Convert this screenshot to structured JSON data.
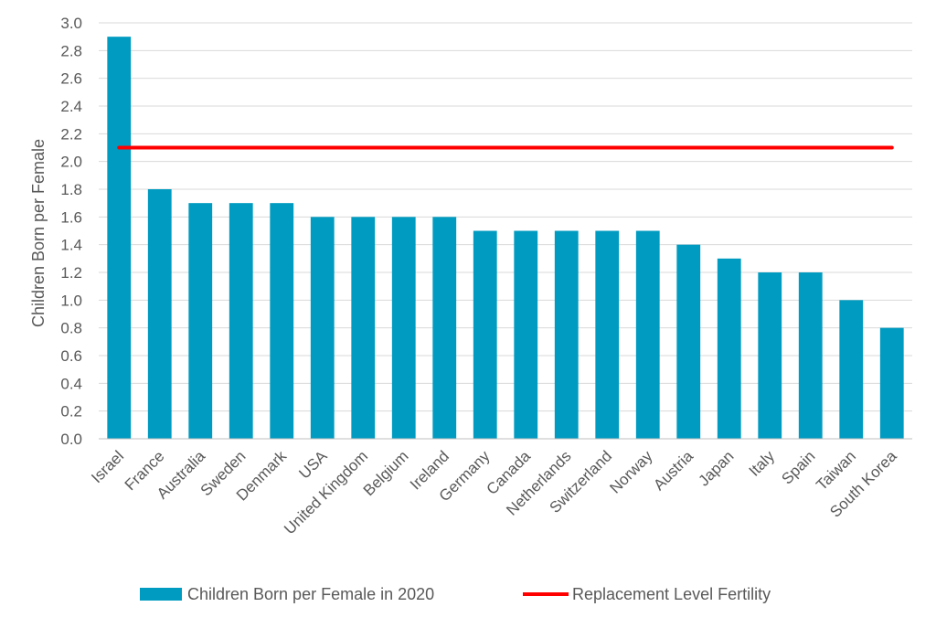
{
  "chart_data": {
    "type": "bar",
    "title": "",
    "xlabel": "",
    "ylabel": "Children Born per Female",
    "ylim": [
      0,
      3.0
    ],
    "ytick_step": 0.2,
    "yticks": [
      "0.0",
      "0.2",
      "0.4",
      "0.6",
      "0.8",
      "1.0",
      "1.2",
      "1.4",
      "1.6",
      "1.8",
      "2.0",
      "2.2",
      "2.4",
      "2.6",
      "2.8",
      "3.0"
    ],
    "grid": true,
    "legend_position": "bottom",
    "categories": [
      "Israel",
      "France",
      "Australia",
      "Sweden",
      "Denmark",
      "USA",
      "United Kingdom",
      "Belgium",
      "Ireland",
      "Germany",
      "Canada",
      "Netherlands",
      "Switzerland",
      "Norway",
      "Austria",
      "Japan",
      "Italy",
      "Spain",
      "Taiwan",
      "South Korea"
    ],
    "series": [
      {
        "name": "Children Born per Female in 2020",
        "type": "bar",
        "color": "#009BC1",
        "values": [
          2.9,
          1.8,
          1.7,
          1.7,
          1.7,
          1.6,
          1.6,
          1.6,
          1.6,
          1.5,
          1.5,
          1.5,
          1.5,
          1.5,
          1.4,
          1.3,
          1.2,
          1.2,
          1.0,
          0.8
        ]
      },
      {
        "name": "Replacement Level Fertility",
        "type": "line",
        "color": "#FF0000",
        "values": [
          2.1,
          2.1,
          2.1,
          2.1,
          2.1,
          2.1,
          2.1,
          2.1,
          2.1,
          2.1,
          2.1,
          2.1,
          2.1,
          2.1,
          2.1,
          2.1,
          2.1,
          2.1,
          2.1,
          2.1
        ]
      }
    ]
  }
}
